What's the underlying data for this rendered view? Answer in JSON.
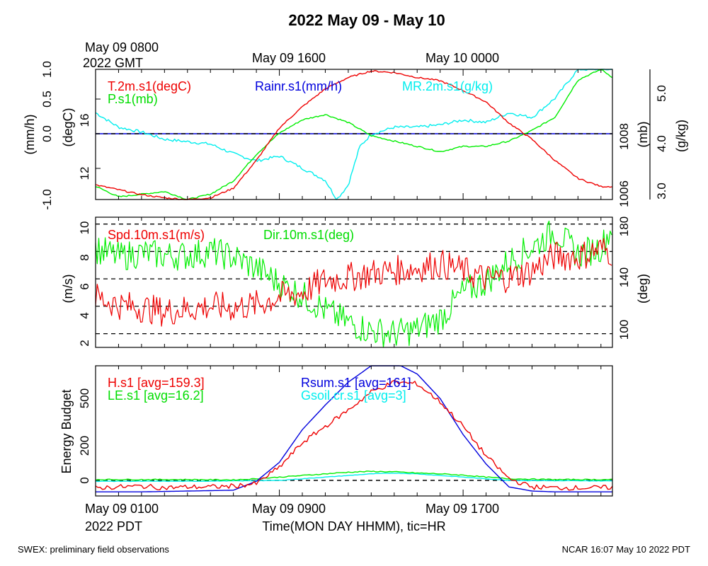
{
  "title": "2022 May 09 - May 10",
  "top_time": {
    "start_line1": "May 09 0800",
    "start_line2": "2022 GMT",
    "t1": "May 09 1600",
    "t2": "May 10 0000"
  },
  "bottom_time": {
    "start_line1": "May 09 0100",
    "start_line2": "2022 PDT",
    "t1": "May 09 0900",
    "t2": "May 09 1700",
    "xlabel": "Time(MON DAY HHMM), tic=HR"
  },
  "footer_left": "SWEX: preliminary field observations",
  "footer_right": "NCAR 16:07 May 10 2022 PDT",
  "colors": {
    "red": "#ee0000",
    "green": "#00ee00",
    "blue": "#0000dd",
    "cyan": "#00eeee",
    "black": "#000000"
  },
  "chart_data": [
    {
      "type": "line",
      "x_unit": "hours since May 09 0100 PDT",
      "xlim": [
        0,
        22.5
      ],
      "legend": {
        "temp": "T.2m.s1(degC)",
        "pres": "P.s1(mb)",
        "rain": "Rainr.s1(mm/h)",
        "mr": "MR.2m.s1(g/kg)"
      },
      "axes": {
        "rain": {
          "label": "(mm/h)",
          "ticks": [
            "-1.0",
            "0.0",
            "0.5",
            "1.0"
          ]
        },
        "temp": {
          "label": "(degC)",
          "ticks": [
            "12",
            "16"
          ]
        },
        "pres": {
          "label": "(mb)",
          "ticks": [
            "1006",
            "1008"
          ]
        },
        "mr": {
          "label": "(g/kg)",
          "ticks": [
            "3.0",
            "4.0",
            "5.0"
          ]
        }
      },
      "series": [
        {
          "name": "T.2m.s1(degC)",
          "color": "#ee0000",
          "x": [
            0,
            1,
            2,
            3,
            4,
            5,
            6,
            7,
            8,
            9,
            10,
            11,
            12,
            13,
            14,
            15,
            16,
            17,
            18,
            19,
            20,
            21,
            22,
            22.5
          ],
          "y": [
            11.7,
            11.4,
            11.1,
            10.9,
            10.8,
            10.9,
            11.5,
            13.2,
            15.2,
            16.5,
            17.6,
            18.3,
            18.7,
            18.6,
            18.3,
            18.1,
            17.5,
            16.8,
            15.5,
            14.5,
            13.2,
            12.1,
            11.6,
            11.6
          ]
        },
        {
          "name": "P.s1(mb)",
          "color": "#00ee00",
          "x": [
            0,
            1,
            2,
            3,
            4,
            5,
            6,
            7,
            8,
            9,
            10,
            11,
            12,
            13,
            14,
            15,
            15.5,
            16,
            17,
            18,
            19,
            20,
            21,
            22,
            22.5
          ],
          "y": [
            1006.4,
            1006.0,
            1006.1,
            1006.2,
            1005.9,
            1006.1,
            1006.6,
            1007.6,
            1008.4,
            1008.9,
            1009.1,
            1008.8,
            1008.3,
            1008.1,
            1007.9,
            1007.7,
            1007.8,
            1007.9,
            1007.9,
            1008.1,
            1008.5,
            1009.0,
            1010.4,
            1010.8,
            1010.5
          ]
        },
        {
          "name": "Rainr.s1(mm/h)",
          "color": "#0000dd",
          "x": [
            0,
            22.5
          ],
          "y": [
            0,
            0
          ]
        },
        {
          "name": "MR.2m.s1(g/kg)",
          "color": "#00eeee",
          "x": [
            0,
            1,
            2,
            3,
            4,
            5,
            6,
            7,
            8,
            9,
            10,
            10.5,
            11,
            11.5,
            12,
            13,
            14,
            15,
            16,
            17,
            18,
            19,
            20,
            21,
            22,
            22.5
          ],
          "y": [
            4.7,
            4.4,
            4.3,
            4.15,
            4.1,
            4.05,
            3.85,
            3.7,
            3.8,
            3.55,
            3.3,
            2.9,
            3.2,
            4.0,
            4.25,
            4.4,
            4.4,
            4.45,
            4.55,
            4.5,
            4.7,
            4.6,
            5.0,
            5.6,
            5.6,
            5.6
          ]
        }
      ]
    },
    {
      "type": "line",
      "x_unit": "hours since May 09 0100 PDT",
      "xlim": [
        0,
        22.5
      ],
      "legend": {
        "spd": "Spd.10m.s1(m/s)",
        "dir": "Dir.10m.s1(deg)"
      },
      "axes": {
        "spd": {
          "label": "(m/s)",
          "ylim": [
            1.5,
            11
          ],
          "ticks": [
            "2",
            "4",
            "6",
            "8",
            "10"
          ]
        },
        "dir": {
          "label": "(deg)",
          "ylim": [
            90,
            185
          ],
          "ticks": [
            "100",
            "140",
            "180"
          ]
        }
      },
      "reference_lines_deg": [
        100,
        120,
        140,
        160,
        180
      ],
      "series": [
        {
          "name": "Spd.10m.s1(m/s)",
          "color": "#ee0000",
          "x": [
            0,
            1,
            2,
            3,
            4,
            5,
            6,
            7,
            8,
            9,
            10,
            11,
            12,
            13,
            14,
            15,
            16,
            17,
            18,
            19,
            20,
            21,
            22,
            22.5
          ],
          "y": [
            5.2,
            4.6,
            4.4,
            4.1,
            4.3,
            4.5,
            4.4,
            4.6,
            5.2,
            5.5,
            6.4,
            6.6,
            6.9,
            7.1,
            7.3,
            7.6,
            7.1,
            6.5,
            6.6,
            7.1,
            8.2,
            8.1,
            8.7,
            8.4
          ]
        },
        {
          "name": "Dir.10m.s1(deg)",
          "color": "#00ee00",
          "x": [
            0,
            1,
            2,
            3,
            4,
            5,
            6,
            7,
            8,
            9,
            10,
            11,
            12,
            13,
            14,
            15,
            16,
            17,
            18,
            19,
            20,
            21,
            22,
            22.5
          ],
          "y": [
            162,
            156,
            159,
            157,
            157,
            160,
            156,
            148,
            137,
            128,
            117,
            108,
            102,
            100,
            103,
            111,
            130,
            138,
            153,
            163,
            175,
            158,
            163,
            178
          ]
        }
      ]
    },
    {
      "type": "line",
      "x_unit": "hours since May 09 0100 PDT",
      "xlim": [
        0,
        22.5
      ],
      "ylabel": "Energy Budget",
      "ylim": [
        -60,
        720
      ],
      "y_ticks": [
        "0",
        "200",
        "500"
      ],
      "legend": {
        "h": "H.s1 [avg=159.3]",
        "le": "LE.s1 [avg=16.2]",
        "rsum": "Rsum.s1 [avg=161]",
        "gsoil": "Gsoil.cr.s1 [avg=3]"
      },
      "series": [
        {
          "name": "H.s1 [avg=159.3]",
          "color": "#ee0000",
          "x": [
            0,
            1,
            2,
            3,
            4,
            5,
            6,
            7,
            8,
            9,
            10,
            11,
            12,
            13,
            14,
            15,
            16,
            17,
            18,
            19,
            20,
            21,
            22,
            22.5
          ],
          "y": [
            -45,
            -40,
            -35,
            -45,
            -40,
            -40,
            -35,
            -20,
            80,
            230,
            330,
            430,
            540,
            600,
            590,
            480,
            330,
            150,
            10,
            -40,
            -45,
            -45,
            -45,
            -42
          ]
        },
        {
          "name": "LE.s1 [avg=16.2]",
          "color": "#00ee00",
          "x": [
            0,
            2,
            4,
            6,
            7,
            8,
            9,
            10,
            11,
            12,
            13,
            14,
            15,
            16,
            17,
            18,
            20,
            22,
            22.5
          ],
          "y": [
            5,
            5,
            5,
            3,
            10,
            20,
            30,
            40,
            50,
            55,
            52,
            45,
            40,
            32,
            20,
            10,
            5,
            5,
            5
          ]
        },
        {
          "name": "Rsum.s1 [avg=161]",
          "color": "#0000dd",
          "x": [
            0,
            2,
            4,
            6,
            7,
            8,
            9,
            10,
            11,
            12,
            13,
            14,
            15,
            16,
            17,
            18,
            19,
            20,
            22,
            22.5
          ],
          "y": [
            -70,
            -70,
            -65,
            -60,
            -5,
            110,
            310,
            460,
            600,
            700,
            720,
            650,
            500,
            280,
            100,
            -40,
            -65,
            -70,
            -70,
            -70
          ]
        },
        {
          "name": "Gsoil.cr.s1 [avg=3]",
          "color": "#00eeee",
          "x": [
            0,
            4,
            6,
            7,
            8,
            9,
            10,
            11,
            12,
            13,
            14,
            15,
            16,
            17,
            18,
            20,
            22,
            22.5
          ],
          "y": [
            -5,
            -5,
            -3,
            -2,
            0,
            10,
            20,
            30,
            40,
            45,
            40,
            30,
            20,
            10,
            0,
            -2,
            -3,
            -3
          ]
        }
      ]
    }
  ]
}
